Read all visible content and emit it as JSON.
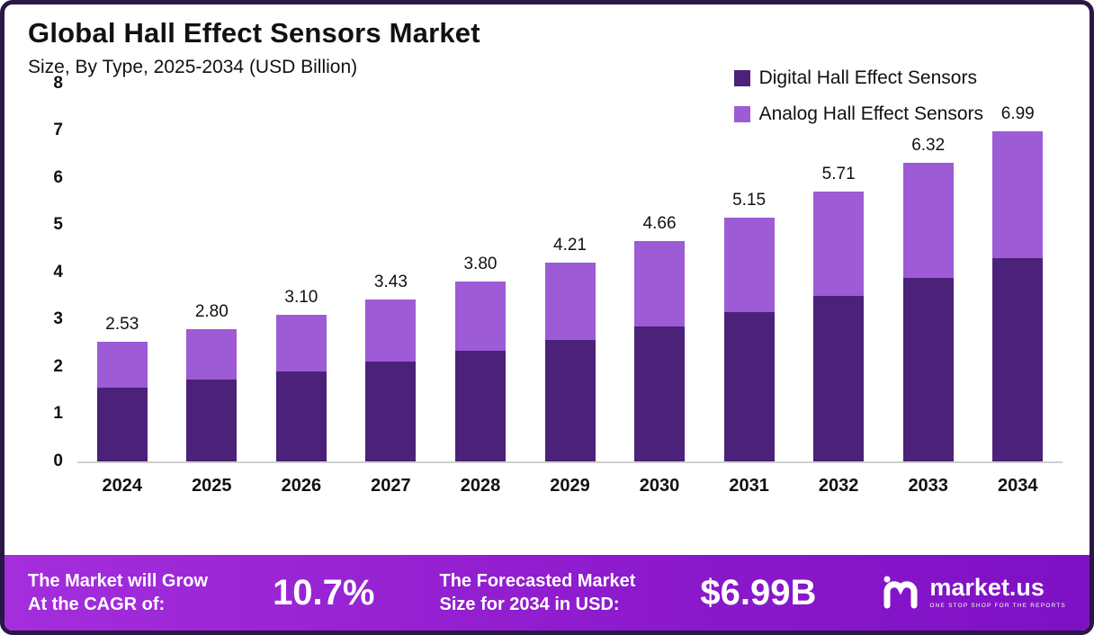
{
  "chart_data": {
    "type": "bar",
    "stacked": true,
    "title": "Global Hall Effect Sensors Market",
    "subtitle": "Size, By Type, 2025-2034 (USD Billion)",
    "categories": [
      "2024",
      "2025",
      "2026",
      "2027",
      "2028",
      "2029",
      "2030",
      "2031",
      "2032",
      "2033",
      "2034"
    ],
    "series": [
      {
        "name": "Digital Hall Effect Sensors",
        "color": "#4b2179",
        "values": [
          1.56,
          1.72,
          1.9,
          2.1,
          2.33,
          2.57,
          2.85,
          3.16,
          3.5,
          3.88,
          4.3
        ]
      },
      {
        "name": "Analog Hall Effect Sensors",
        "color": "#9d5bd6",
        "values": [
          0.97,
          1.08,
          1.2,
          1.33,
          1.47,
          1.64,
          1.81,
          1.99,
          2.21,
          2.44,
          2.69
        ]
      }
    ],
    "totals": [
      "2.53",
      "2.80",
      "3.10",
      "3.43",
      "3.80",
      "4.21",
      "4.66",
      "5.15",
      "5.71",
      "6.32",
      "6.99"
    ],
    "ylim": [
      0,
      8
    ],
    "yticks": [
      0,
      1,
      2,
      3,
      4,
      5,
      6,
      7,
      8
    ],
    "legend_position": "top-right",
    "grid": false
  },
  "footer": {
    "cagr_label_line1": "The Market will Grow",
    "cagr_label_line2": "At the CAGR of:",
    "cagr_value": "10.7%",
    "forecast_label_line1": "The Forecasted Market",
    "forecast_label_line2": "Size for 2034 in USD:",
    "forecast_value": "$6.99B",
    "brand": "market.us",
    "brand_tagline": "ONE STOP SHOP FOR THE REPORTS"
  },
  "colors": {
    "digital": "#4b2179",
    "analog": "#9d5bd6",
    "border": "#2a1647",
    "footer_gradient_start": "#a42edc",
    "footer_gradient_end": "#7e10c4"
  }
}
